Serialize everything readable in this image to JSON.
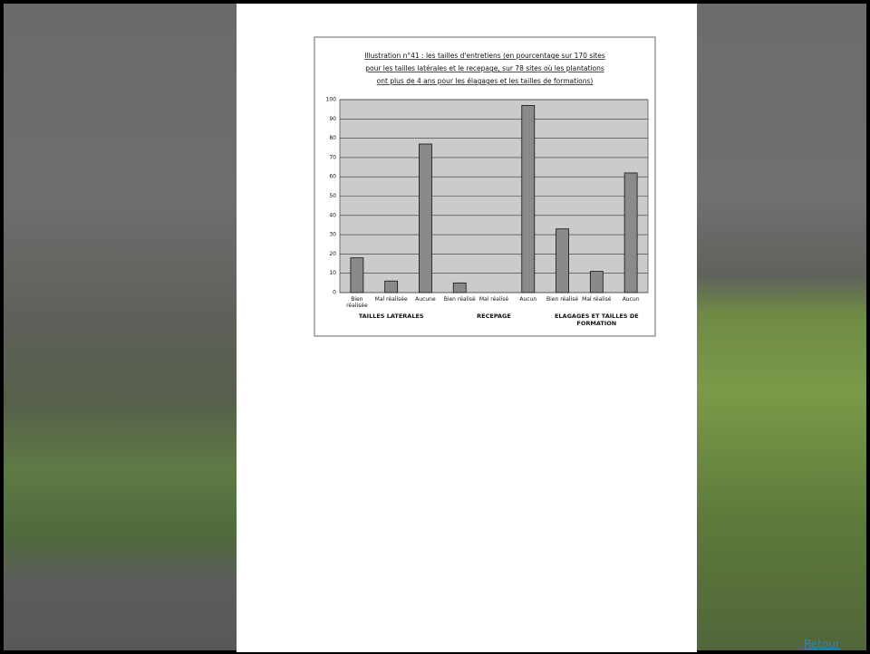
{
  "chart_data": {
    "type": "bar",
    "title": [
      "Illustration n°41 : les tailles d'entretiens (en pourcentage sur 170 sites",
      "pour les tailles latérales et le recepage, sur 78 sites où les plantations",
      "ont plus de 4 ans pour les élagages et les tailles de formations)"
    ],
    "categories": [
      "Bien réalisée",
      "Mal réalisée",
      "Aucune",
      "Bien réalisé",
      "Mal réalisé",
      "Aucun",
      "Bien réalisé",
      "Mal réalisé",
      "Aucun"
    ],
    "groups": [
      "TAILLES LATERALES",
      "RECEPAGE",
      "ELAGAGES ET TAILLES DE FORMATION"
    ],
    "values": [
      18,
      6,
      77,
      5,
      0,
      97,
      33,
      11,
      62
    ],
    "color": "#8a8a8a",
    "ylim": [
      0,
      100
    ],
    "yticks": [
      0,
      10,
      20,
      30,
      40,
      50,
      60,
      70,
      80,
      90,
      100
    ],
    "grid": true
  },
  "link": "Retour"
}
